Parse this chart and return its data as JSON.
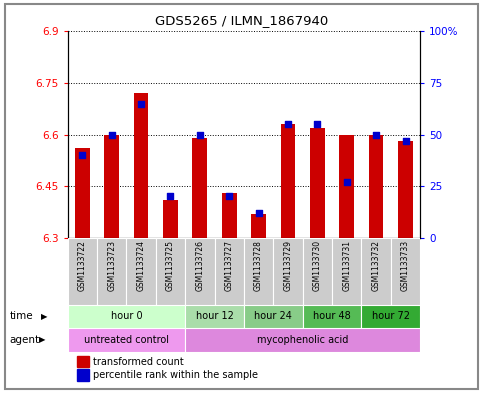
{
  "title": "GDS5265 / ILMN_1867940",
  "samples": [
    "GSM1133722",
    "GSM1133723",
    "GSM1133724",
    "GSM1133725",
    "GSM1133726",
    "GSM1133727",
    "GSM1133728",
    "GSM1133729",
    "GSM1133730",
    "GSM1133731",
    "GSM1133732",
    "GSM1133733"
  ],
  "transformed_count": [
    6.56,
    6.6,
    6.72,
    6.41,
    6.59,
    6.43,
    6.37,
    6.63,
    6.62,
    6.6,
    6.6,
    6.58
  ],
  "percentile_rank": [
    40,
    50,
    65,
    20,
    50,
    20,
    12,
    55,
    55,
    27,
    50,
    47
  ],
  "ylim_left": [
    6.3,
    6.9
  ],
  "ylim_right": [
    0,
    100
  ],
  "yticks_left": [
    6.3,
    6.45,
    6.6,
    6.75,
    6.9
  ],
  "yticks_right": [
    0,
    25,
    50,
    75,
    100
  ],
  "ytick_labels_left": [
    "6.3",
    "6.45",
    "6.6",
    "6.75",
    "6.9"
  ],
  "ytick_labels_right": [
    "0",
    "25",
    "50",
    "75",
    "100%"
  ],
  "bar_color": "#cc0000",
  "dot_color": "#0000cc",
  "bar_width": 0.5,
  "time_groups": [
    {
      "label": "hour 0",
      "start": 0,
      "end": 3,
      "color": "#ccffcc"
    },
    {
      "label": "hour 12",
      "start": 4,
      "end": 5,
      "color": "#aaddaa"
    },
    {
      "label": "hour 24",
      "start": 6,
      "end": 7,
      "color": "#88cc88"
    },
    {
      "label": "hour 48",
      "start": 8,
      "end": 9,
      "color": "#55bb55"
    },
    {
      "label": "hour 72",
      "start": 10,
      "end": 11,
      "color": "#33aa33"
    }
  ],
  "agent_groups": [
    {
      "label": "untreated control",
      "start": 0,
      "end": 3,
      "color": "#ee99ee"
    },
    {
      "label": "mycophenolic acid",
      "start": 4,
      "end": 11,
      "color": "#dd88dd"
    }
  ],
  "time_label": "time",
  "agent_label": "agent",
  "legend_bar_label": "transformed count",
  "legend_dot_label": "percentile rank within the sample",
  "sample_bg_color": "#cccccc",
  "outer_border_color": "#888888"
}
